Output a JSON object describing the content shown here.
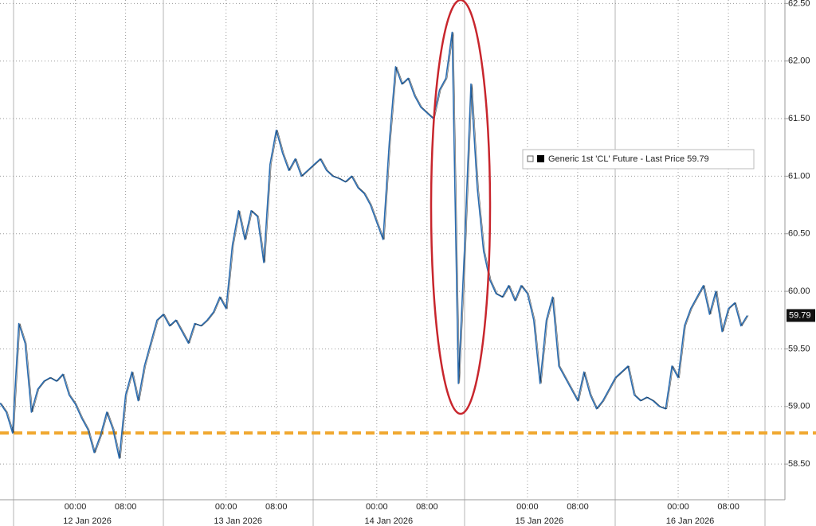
{
  "chart_data": {
    "type": "line",
    "series": [
      {
        "name": "Generic 1st 'CL' Future - Last Price 59.79",
        "color": "#2a6cb0",
        "values": [
          59.03,
          58.95,
          58.77,
          59.72,
          59.55,
          58.95,
          59.15,
          59.22,
          59.25,
          59.22,
          59.28,
          59.1,
          59.02,
          58.9,
          58.8,
          58.6,
          58.75,
          58.95,
          58.8,
          58.55,
          59.1,
          59.3,
          59.05,
          59.35,
          59.55,
          59.75,
          59.8,
          59.7,
          59.75,
          59.65,
          59.55,
          59.72,
          59.7,
          59.75,
          59.82,
          59.95,
          59.85,
          60.4,
          60.7,
          60.45,
          60.7,
          60.65,
          60.25,
          61.1,
          61.4,
          61.2,
          61.05,
          61.15,
          61.0,
          61.05,
          61.1,
          61.15,
          61.05,
          61.0,
          60.98,
          60.95,
          61.0,
          60.9,
          60.85,
          60.75,
          60.6,
          60.45,
          61.3,
          61.95,
          61.8,
          61.85,
          61.7,
          61.6,
          61.55,
          61.5,
          61.75,
          61.85,
          62.25,
          59.2,
          60.4,
          61.8,
          60.9,
          60.35,
          60.1,
          59.98,
          59.95,
          60.05,
          59.92,
          60.05,
          59.98,
          59.75,
          59.2,
          59.75,
          59.95,
          59.35,
          59.25,
          59.15,
          59.05,
          59.3,
          59.1,
          58.98,
          59.05,
          59.15,
          59.25,
          59.3,
          59.35,
          59.1,
          59.05,
          59.08,
          59.05,
          59.0,
          58.98,
          59.35,
          59.25,
          59.7,
          59.85,
          59.95,
          60.05,
          59.8,
          60.0,
          59.65,
          59.85,
          59.9,
          59.7,
          59.79
        ]
      }
    ],
    "x": [
      "2026-01-11 12:00",
      "2026-01-11 13:00",
      "2026-01-11 14:00",
      "2026-01-11 15:00",
      "2026-01-11 16:00",
      "2026-01-11 17:00",
      "2026-01-11 18:00",
      "2026-01-11 19:00",
      "2026-01-11 20:00",
      "2026-01-11 21:00",
      "2026-01-11 22:00",
      "2026-01-11 23:00",
      "2026-01-12 00:00",
      "2026-01-12 01:00",
      "2026-01-12 02:00",
      "2026-01-12 03:00",
      "2026-01-12 04:00",
      "2026-01-12 05:00",
      "2026-01-12 06:00",
      "2026-01-12 07:00",
      "2026-01-12 08:00",
      "2026-01-12 09:00",
      "2026-01-12 10:00",
      "2026-01-12 11:00",
      "2026-01-12 12:00",
      "2026-01-12 13:00",
      "2026-01-12 14:00",
      "2026-01-12 15:00",
      "2026-01-12 16:00",
      "2026-01-12 17:00",
      "2026-01-12 18:00",
      "2026-01-12 19:00",
      "2026-01-12 20:00",
      "2026-01-12 21:00",
      "2026-01-12 22:00",
      "2026-01-12 23:00",
      "2026-01-13 00:00",
      "2026-01-13 01:00",
      "2026-01-13 02:00",
      "2026-01-13 03:00",
      "2026-01-13 04:00",
      "2026-01-13 05:00",
      "2026-01-13 06:00",
      "2026-01-13 07:00",
      "2026-01-13 08:00",
      "2026-01-13 09:00",
      "2026-01-13 10:00",
      "2026-01-13 11:00",
      "2026-01-13 12:00",
      "2026-01-13 13:00",
      "2026-01-13 14:00",
      "2026-01-13 15:00",
      "2026-01-13 16:00",
      "2026-01-13 17:00",
      "2026-01-13 18:00",
      "2026-01-13 19:00",
      "2026-01-13 20:00",
      "2026-01-13 21:00",
      "2026-01-13 22:00",
      "2026-01-13 23:00",
      "2026-01-14 00:00",
      "2026-01-14 01:00",
      "2026-01-14 02:00",
      "2026-01-14 03:00",
      "2026-01-14 04:00",
      "2026-01-14 05:00",
      "2026-01-14 06:00",
      "2026-01-14 07:00",
      "2026-01-14 08:00",
      "2026-01-14 09:00",
      "2026-01-14 10:00",
      "2026-01-14 11:00",
      "2026-01-14 12:00",
      "2026-01-14 13:00",
      "2026-01-14 14:00",
      "2026-01-14 15:00",
      "2026-01-14 16:00",
      "2026-01-14 17:00",
      "2026-01-14 18:00",
      "2026-01-14 19:00",
      "2026-01-14 20:00",
      "2026-01-14 21:00",
      "2026-01-14 22:00",
      "2026-01-14 23:00",
      "2026-01-15 00:00",
      "2026-01-15 01:00",
      "2026-01-15 02:00",
      "2026-01-15 03:00",
      "2026-01-15 04:00",
      "2026-01-15 05:00",
      "2026-01-15 06:00",
      "2026-01-15 07:00",
      "2026-01-15 08:00",
      "2026-01-15 09:00",
      "2026-01-15 10:00",
      "2026-01-15 11:00",
      "2026-01-15 12:00",
      "2026-01-15 13:00",
      "2026-01-15 14:00",
      "2026-01-15 15:00",
      "2026-01-15 16:00",
      "2026-01-15 17:00",
      "2026-01-15 18:00",
      "2026-01-15 19:00",
      "2026-01-15 20:00",
      "2026-01-15 21:00",
      "2026-01-15 22:00",
      "2026-01-15 23:00",
      "2026-01-16 00:00",
      "2026-01-16 01:00",
      "2026-01-16 02:00",
      "2026-01-16 03:00",
      "2026-01-16 04:00",
      "2026-01-16 05:00",
      "2026-01-16 06:00",
      "2026-01-16 07:00",
      "2026-01-16 08:00",
      "2026-01-16 09:00",
      "2026-01-16 10:00",
      "2026-01-16 11:00"
    ],
    "xlim": [
      "2026-01-11 12:00",
      "2026-01-16 17:00"
    ],
    "xticks": [
      {
        "value": "2026-01-12 00:00",
        "label": "00:00"
      },
      {
        "value": "2026-01-12 08:00",
        "label": "08:00"
      },
      {
        "value": "2026-01-13 00:00",
        "label": "00:00"
      },
      {
        "value": "2026-01-13 08:00",
        "label": "08:00"
      },
      {
        "value": "2026-01-14 00:00",
        "label": "00:00"
      },
      {
        "value": "2026-01-14 08:00",
        "label": "08:00"
      },
      {
        "value": "2026-01-15 00:00",
        "label": "00:00"
      },
      {
        "value": "2026-01-15 08:00",
        "label": "08:00"
      },
      {
        "value": "2026-01-16 00:00",
        "label": "00:00"
      },
      {
        "value": "2026-01-16 08:00",
        "label": "08:00"
      }
    ],
    "date_labels": [
      {
        "value": "2026-01-12 00:00",
        "label": "12 Jan 2026"
      },
      {
        "value": "2026-01-13 00:00",
        "label": "13 Jan 2026"
      },
      {
        "value": "2026-01-14 00:00",
        "label": "14 Jan 2026"
      },
      {
        "value": "2026-01-15 00:00",
        "label": "15 Jan 2026"
      },
      {
        "value": "2026-01-16 00:00",
        "label": "16 Jan 2026"
      }
    ],
    "ylim": [
      58.19,
      62.53
    ],
    "yticks": [
      {
        "value": 58.5,
        "label": "58.50"
      },
      {
        "value": 59,
        "label": "59.00"
      },
      {
        "value": 59.5,
        "label": "59.50"
      },
      {
        "value": 60,
        "label": "60.00"
      },
      {
        "value": 60.5,
        "label": "60.50"
      },
      {
        "value": 61,
        "label": "61.00"
      },
      {
        "value": 61.5,
        "label": "61.50"
      },
      {
        "value": 62,
        "label": "62.00"
      },
      {
        "value": 62.5,
        "label": "62.50"
      }
    ],
    "grid": true,
    "reference_line": {
      "value": 58.77,
      "color": "#f0a830"
    }
  }
}
